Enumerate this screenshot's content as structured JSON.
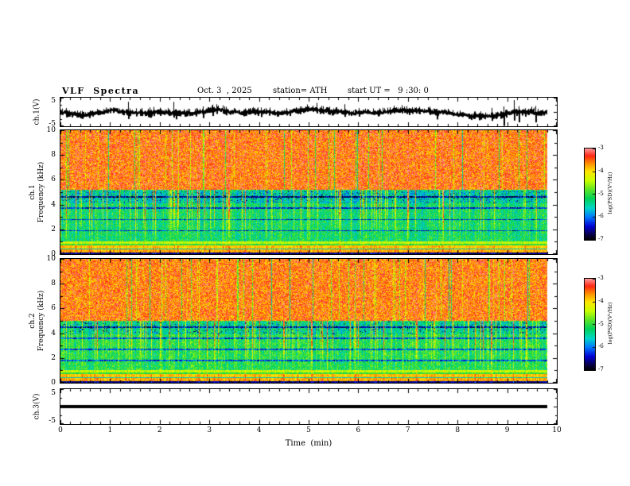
{
  "header": {
    "title": "VLF  Spectra",
    "date": "Oct. 3  , 2025",
    "station": "station= ATH",
    "start_ut": "start UT =   9 :30: 0"
  },
  "axes": {
    "x": {
      "title": "Time  (min)",
      "min": 0,
      "max": 10,
      "ticks": [
        "0",
        "1",
        "2",
        "3",
        "4",
        "5",
        "6",
        "7",
        "8",
        "9",
        "10"
      ]
    },
    "wave_y": {
      "min": -5,
      "max": 5,
      "ticks": [
        "5",
        "-5"
      ]
    },
    "spec_y": {
      "min": 0,
      "max": 10,
      "ticks": [
        "10",
        "8",
        "6",
        "4",
        "2",
        "0"
      ]
    }
  },
  "panels": {
    "wave1": {
      "ylabel": "ch.1(V)"
    },
    "spec1": {
      "ylabel_line1": "ch.1",
      "ylabel_line2": "Frequency (kHz)"
    },
    "spec2": {
      "ylabel_line1": "ch.2",
      "ylabel_line2": "Frequency (kHz)"
    },
    "wave3": {
      "ylabel": "ch.3(V)"
    }
  },
  "colorbar": {
    "label": "log(PSD)(V²/Hz)",
    "ticks": [
      "-3",
      "-4",
      "-5",
      "-6",
      "-7"
    ],
    "max": -3,
    "min": -7
  },
  "chart_data": [
    {
      "type": "line",
      "name": "ch1_waveform",
      "ylabel": "ch.1(V)",
      "xlim": [
        0,
        10
      ],
      "ylim": [
        -5,
        5
      ],
      "x_unit": "min",
      "signal_end_min": 9.8,
      "summary": "continuous broadband noise centered on 0 V, typical excursions ±1.5 V with frequent spikes reaching about ±4 V over the full 0-9.8 min record"
    },
    {
      "type": "heatmap",
      "name": "ch1_spectrogram",
      "ylabel": "ch.1 Frequency (kHz)",
      "xlim": [
        0,
        10
      ],
      "ylim": [
        0,
        10
      ],
      "yticks": [
        0,
        2,
        4,
        6,
        8,
        10
      ],
      "signal_end_min": 9.8,
      "colorbar": {
        "label": "log(PSD)(V²/Hz)",
        "range": [
          -7,
          -3
        ],
        "ticks": [
          -3,
          -4,
          -5,
          -6,
          -7
        ]
      },
      "bands": [
        {
          "range_khz": [
            5.2,
            10
          ],
          "mean_log_psd": -3.5,
          "description": "saturated red/orange broadband noise with sporadic yellow-green vertical gaps"
        },
        {
          "range_khz": [
            1.0,
            5.2
          ],
          "mean_log_psd": -5.2,
          "description": "green/cyan background crossed by dense red vertical sferic streaks descending from about 5 kHz"
        },
        {
          "range_khz": [
            0.0,
            1.0
          ],
          "mean_log_psd": -4.0,
          "description": "bright yellow/red horizontally banded structure below 1 kHz"
        }
      ],
      "dark_lines_khz": [
        1.9,
        2.8,
        3.7,
        4.6
      ]
    },
    {
      "type": "heatmap",
      "name": "ch2_spectrogram",
      "ylabel": "ch.2 Frequency (kHz)",
      "xlim": [
        0,
        10
      ],
      "ylim": [
        0,
        10
      ],
      "yticks": [
        0,
        2,
        4,
        6,
        8,
        10
      ],
      "signal_end_min": 9.8,
      "colorbar": {
        "label": "log(PSD)(V²/Hz)",
        "range": [
          -7,
          -3
        ],
        "ticks": [
          -3,
          -4,
          -5,
          -6,
          -7
        ]
      },
      "bands": [
        {
          "range_khz": [
            5.0,
            10
          ],
          "mean_log_psd": -3.55,
          "description": "red/orange broadband noise with yellow mixture and sporadic green vertical gaps"
        },
        {
          "range_khz": [
            1.0,
            5.0
          ],
          "mean_log_psd": -5.1,
          "description": "green/cyan background with frequent red/yellow vertical sferic streaks"
        },
        {
          "range_khz": [
            0.0,
            1.0
          ],
          "mean_log_psd": -4.0,
          "description": "bright yellow/red horizontally banded structure below 1 kHz"
        }
      ],
      "dark_lines_khz": [
        1.8,
        2.7,
        3.6,
        4.5
      ]
    },
    {
      "type": "line",
      "name": "ch3_waveform",
      "ylabel": "ch.3(V)",
      "xlim": [
        0,
        10
      ],
      "ylim": [
        -5,
        5
      ],
      "x_unit": "min",
      "signal_end_min": 9.8,
      "summary": "constant 0 V — flat thick black line (no signal) from 0 to 9.8 min"
    }
  ]
}
